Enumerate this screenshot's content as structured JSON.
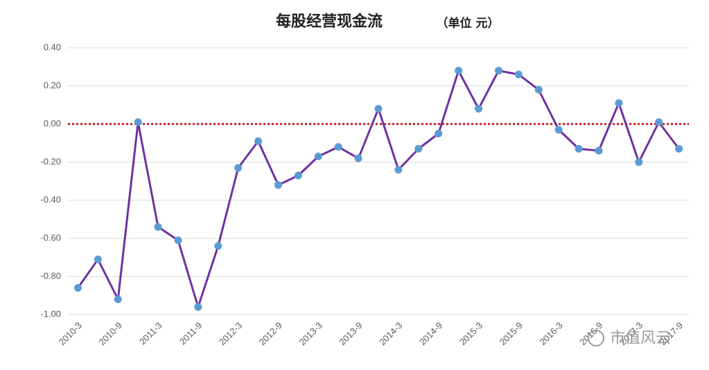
{
  "chart_data": {
    "type": "line",
    "title": "每股经营现金流",
    "subtitle": "（单位  元）",
    "categories": [
      "2010-3",
      null,
      "2010-9",
      null,
      "2011-3",
      null,
      "2011-9",
      null,
      "2012-3",
      null,
      "2012-9",
      null,
      "2013-3",
      null,
      "2013-9",
      null,
      "2014-3",
      null,
      "2014-9",
      null,
      "2015-3",
      null,
      "2015-9",
      null,
      "2016-3",
      null,
      "2016-9",
      null,
      "2017-3",
      null,
      "2017-9"
    ],
    "series": [
      {
        "name": "每股经营现金流",
        "color": "#7030a0",
        "marker_color": "#5b9bd5",
        "values": [
          -0.86,
          -0.71,
          -0.92,
          0.01,
          -0.54,
          -0.61,
          -0.96,
          -0.64,
          -0.23,
          -0.09,
          -0.32,
          -0.27,
          -0.17,
          -0.12,
          -0.18,
          0.08,
          -0.24,
          -0.13,
          -0.05,
          0.28,
          0.08,
          0.28,
          0.26,
          0.18,
          -0.03,
          -0.13,
          -0.14,
          0.11,
          -0.2,
          0.01,
          -0.13
        ]
      }
    ],
    "ylim": [
      -1.0,
      0.4
    ],
    "yticks": [
      {
        "value": -1.0,
        "label": "-1.00"
      },
      {
        "value": -0.8,
        "label": "-0.80"
      },
      {
        "value": -0.6,
        "label": "-0.60"
      },
      {
        "value": -0.4,
        "label": "-0.40"
      },
      {
        "value": -0.2,
        "label": "-0.20"
      },
      {
        "value": 0,
        "label": "0.00"
      },
      {
        "value": 0.2,
        "label": "0.20"
      },
      {
        "value": 0.4,
        "label": "0.40"
      }
    ],
    "grid": true,
    "reference_line": {
      "value": 0,
      "color": "#c00000"
    },
    "watermark": "市值风云"
  }
}
